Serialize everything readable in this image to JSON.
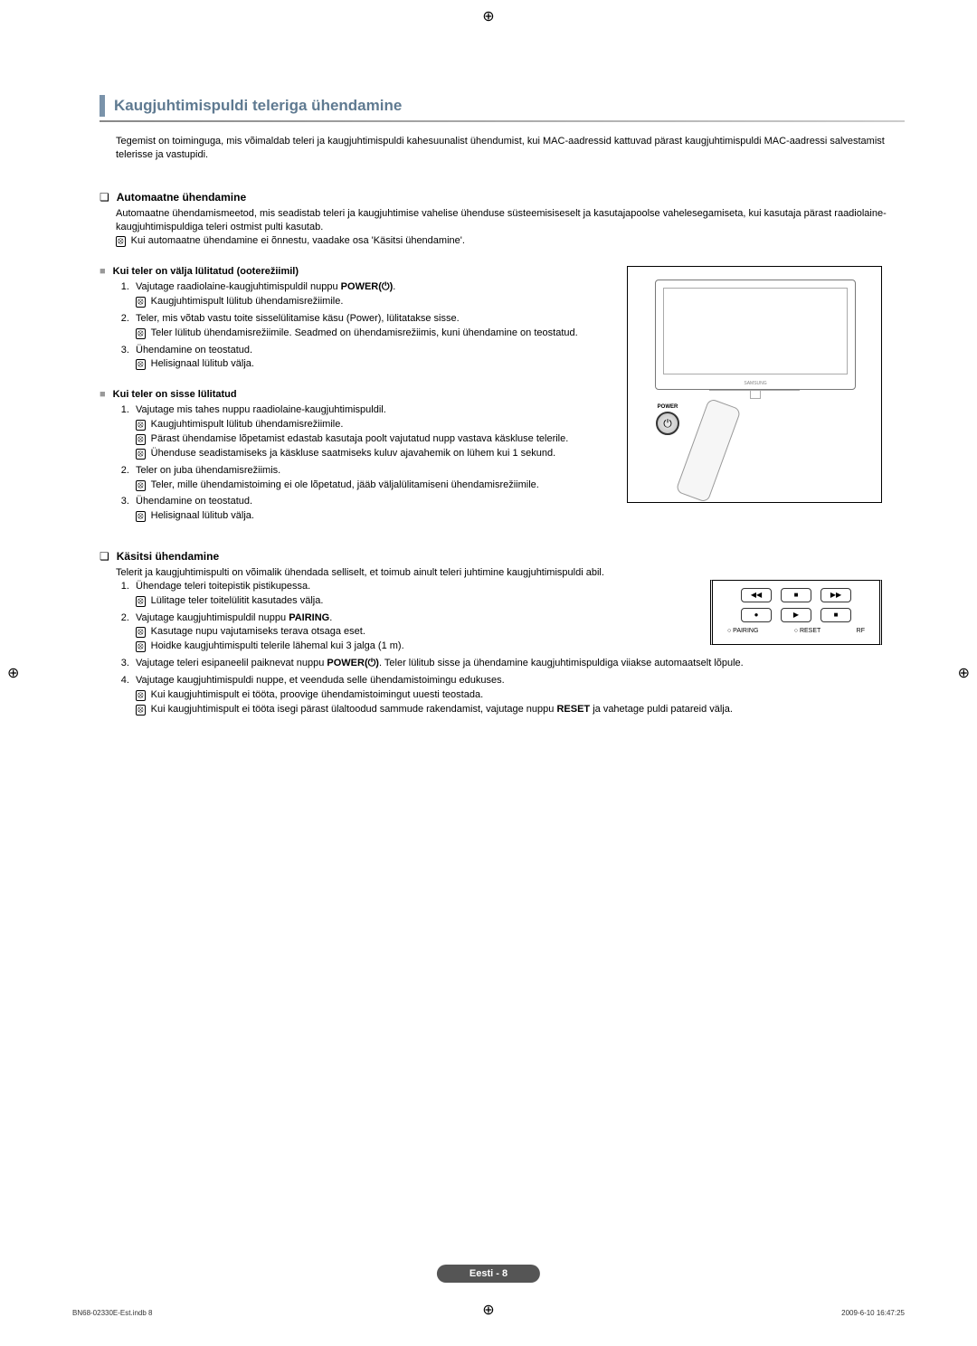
{
  "crop_mark": "⊕",
  "section_title": "Kaugjuhtimispuldi teleriga ühendamine",
  "intro": "Tegemist on toiminguga, mis võimaldab teleri ja kaugjuhtimispuldi kahesuunalist ühendumist, kui MAC-aadressid kattuvad pärast kaugjuhtimispuldi MAC-aadressi salvestamist telerisse ja vastupidi.",
  "auto": {
    "heading": "Automaatne ühendamine",
    "intro": "Automaatne ühendamismeetod, mis seadistab teleri ja kaugjuhtimise vahelise ühenduse süsteemisiseselt ja kasutajapoolse vahelesegamiseta, kui kasutaja pärast raadiolaine-kaugjuhtimispuldiga teleri ostmist pulti kasutab.",
    "note": "Kui automaatne ühendamine ei õnnestu, vaadake osa 'Käsitsi ühendamine'.",
    "off_heading": "Kui teler on välja lülitatud (ooterežiimil)",
    "off_steps": [
      {
        "text": "Vajutage raadiolaine-kaugjuhtimispuldil nuppu POWER(⏻).",
        "notes": [
          "Kaugjuhtimispult lülitub ühendamisrežiimile."
        ]
      },
      {
        "text": "Teler, mis võtab vastu toite sisselülitamise käsu (Power), lülitatakse sisse.",
        "notes": [
          "Teler lülitub ühendamisrežiimile. Seadmed on ühendamisrežiimis, kuni ühendamine on teostatud."
        ]
      },
      {
        "text": "Ühendamine on teostatud.",
        "notes": [
          "Helisignaal lülitub välja."
        ]
      }
    ],
    "on_heading": "Kui teler on sisse lülitatud",
    "on_steps": [
      {
        "text": "Vajutage mis tahes nuppu raadiolaine-kaugjuhtimispuldil.",
        "notes": [
          "Kaugjuhtimispult lülitub ühendamisrežiimile.",
          "Pärast ühendamise lõpetamist edastab kasutaja poolt vajutatud nupp vastava käskluse telerile.",
          "Ühenduse seadistamiseks ja käskluse saatmiseks kuluv ajavahemik on lühem kui 1 sekund."
        ]
      },
      {
        "text": "Teler on juba ühendamisrežiimis.",
        "notes": [
          "Teler, mille ühendamistoiming ei ole lõpetatud, jääb väljalülitamiseni ühendamisrežiimile."
        ]
      },
      {
        "text": "Ühendamine on teostatud.",
        "notes": [
          "Helisignaal lülitub välja."
        ]
      }
    ]
  },
  "manual": {
    "heading": "Käsitsi ühendamine",
    "intro": "Telerit ja kaugjuhtimispulti on võimalik ühendada selliselt, et toimub ainult teleri juhtimine kaugjuhtimispuldi abil.",
    "steps": [
      {
        "text": "Ühendage teleri toitepistik pistikupessa.",
        "notes": [
          "Lülitage teler toitelülitit kasutades välja."
        ]
      },
      {
        "text": "Vajutage kaugjuhtimispuldil nuppu PAIRING.",
        "notes": [
          "Kasutage nupu vajutamiseks terava otsaga eset.",
          "Hoidke kaugjuhtimispulti telerile lähemal kui 3 jalga (1 m)."
        ]
      },
      {
        "text": "Vajutage teleri esipaneelil paiknevat nuppu POWER(⏻). Teler lülitub sisse ja ühendamine kaugjuhtimispuldiga viiakse automaatselt lõpule.",
        "notes": []
      },
      {
        "text": "Vajutage kaugjuhtimispuldi nuppe, et veenduda selle ühendamistoimingu edukuses.",
        "notes": [
          "Kui kaugjuhtimispult ei tööta, proovige ühendamistoimingut uuesti teostada.",
          "Kui kaugjuhtimispult ei tööta isegi pärast ülaltoodud sammude rakendamist, vajutage nuppu RESET ja vahetage puldi patareid välja."
        ]
      }
    ]
  },
  "illustration": {
    "tv_brand": "SAMSUNG",
    "power_label": "POWER",
    "power_symbol": "⏻",
    "buttons_row1": [
      "◀◀",
      "■",
      "▶▶"
    ],
    "buttons_row2": [
      "●",
      "▶",
      "■"
    ],
    "labels": {
      "pairing": "○ PAIRING",
      "reset": "○ RESET",
      "rf": "RF"
    }
  },
  "footer": {
    "center": "Eesti - 8",
    "left": "BN68-02330E-Est.indb   8",
    "right": "2009-6-10   16:47:25"
  }
}
